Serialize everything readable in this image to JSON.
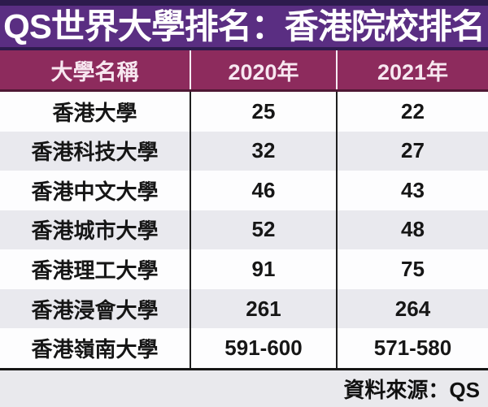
{
  "title": "QS世界大學排名：香港院校排名",
  "table": {
    "headers": [
      "大學名稱",
      "2020年",
      "2021年"
    ],
    "rows": [
      {
        "name": "香港大學",
        "y2020": "25",
        "y2021": "22"
      },
      {
        "name": "香港科技大學",
        "y2020": "32",
        "y2021": "27"
      },
      {
        "name": "香港中文大學",
        "y2020": "46",
        "y2021": "43"
      },
      {
        "name": "香港城市大學",
        "y2020": "52",
        "y2021": "48"
      },
      {
        "name": "香港理工大學",
        "y2020": "91",
        "y2021": "75"
      },
      {
        "name": "香港浸會大學",
        "y2020": "261",
        "y2021": "264"
      },
      {
        "name": "香港嶺南大學",
        "y2020": "591-600",
        "y2021": "571-580"
      }
    ]
  },
  "source_note": "資料來源：QS",
  "colors": {
    "top_strip": "#2d1b4d",
    "title_band": "#5a2e82",
    "header_band": "#8d2b5d",
    "header_border": "#4f1834",
    "row_white": "#fdfdfe",
    "row_alt": "#e9e9ee",
    "footer_bg": "#e9e9ed"
  },
  "chart_data": {
    "type": "table",
    "title": "QS世界大學排名：香港院校排名",
    "columns": [
      "大學名稱",
      "2020年",
      "2021年"
    ],
    "rows": [
      [
        "香港大學",
        25,
        22
      ],
      [
        "香港科技大學",
        32,
        27
      ],
      [
        "香港中文大學",
        46,
        43
      ],
      [
        "香港城市大學",
        52,
        48
      ],
      [
        "香港理工大學",
        91,
        75
      ],
      [
        "香港浸會大學",
        261,
        264
      ],
      [
        "香港嶺南大學",
        "591-600",
        "571-580"
      ]
    ],
    "source": "資料來源：QS"
  }
}
